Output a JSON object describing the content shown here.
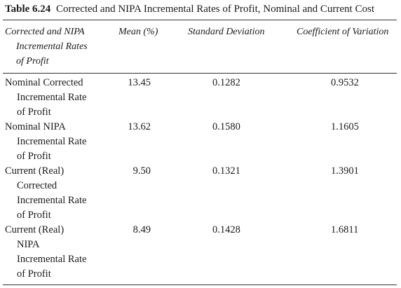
{
  "table": {
    "number": "Table 6.24",
    "title": "Corrected and NIPA Incremental Rates of Profit, Nominal and Current Cost",
    "headers": {
      "label": [
        "Corrected and NIPA",
        "Incremental Rates",
        "of Profit"
      ],
      "mean": "Mean (%)",
      "sd": "Standard Deviation",
      "cv": "Coefficient of Variation"
    },
    "rows": [
      {
        "label": [
          "Nominal Corrected",
          "Incremental Rate",
          "of Profit"
        ],
        "mean": "13.45",
        "sd": "0.1282",
        "cv": "0.9532"
      },
      {
        "label": [
          "Nominal NIPA",
          "Incremental Rate",
          "of Profit"
        ],
        "mean": "13.62",
        "sd": "0.1580",
        "cv": "1.1605"
      },
      {
        "label": [
          "Current (Real)",
          "Corrected",
          "Incremental Rate",
          "of Profit"
        ],
        "mean": "9.50",
        "sd": "0.1321",
        "cv": "1.3901"
      },
      {
        "label": [
          "Current (Real)",
          "NIPA",
          "Incremental Rate",
          "of Profit"
        ],
        "mean": "8.49",
        "sd": "0.1428",
        "cv": "1.6811"
      }
    ]
  }
}
